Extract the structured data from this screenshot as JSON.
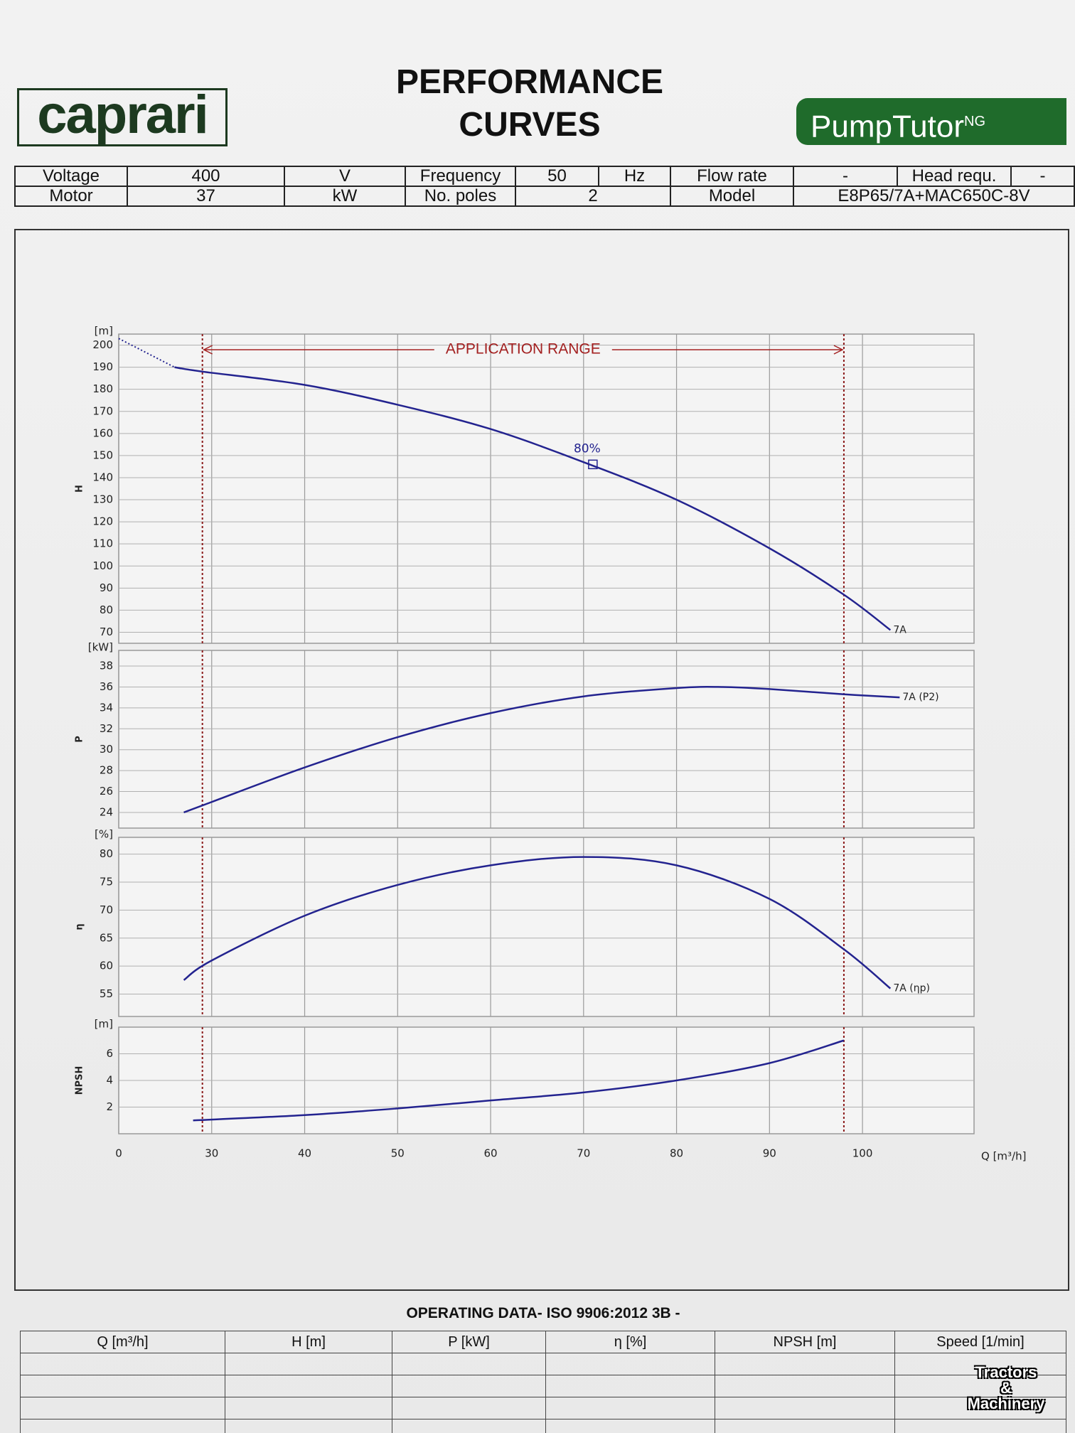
{
  "header": {
    "logo": "caprari",
    "title_line1": "PERFORMANCE",
    "title_line2": "CURVES",
    "brand": "PumpTutor",
    "brand_sup": "NG"
  },
  "info": {
    "rows": [
      [
        "Voltage",
        "400",
        "V",
        "Frequency",
        "50",
        "Hz",
        "Flow rate",
        "-",
        "Head requ.",
        "-"
      ],
      [
        "Motor",
        "37",
        "kW",
        "No. poles",
        "2",
        "Model",
        "E8P65/7A+MAC650C-8V"
      ]
    ]
  },
  "chart_data": [
    {
      "type": "line",
      "ylabel": "H",
      "yunit": "[m]",
      "ylim": [
        65,
        205
      ],
      "yticks": [
        70,
        80,
        90,
        100,
        110,
        120,
        130,
        140,
        150,
        160,
        170,
        180,
        190,
        200
      ],
      "series": [
        {
          "name": "7A",
          "color": "#23238f",
          "x": [
            26,
            29,
            40,
            50,
            60,
            70,
            80,
            90,
            98,
            103
          ],
          "values": [
            190,
            188,
            182,
            173,
            162,
            147,
            130,
            108,
            87,
            71
          ]
        }
      ],
      "dotted": {
        "x": [
          20,
          26
        ],
        "values": [
          203,
          190
        ]
      },
      "application_range": {
        "label": "APPLICATION RANGE",
        "x": [
          29,
          98
        ]
      },
      "markers": [
        {
          "label": "80%",
          "x": 71,
          "y": 146
        }
      ]
    },
    {
      "type": "line",
      "ylabel": "P",
      "yunit": "[kW]",
      "ylim": [
        22.5,
        39.5
      ],
      "yticks": [
        24,
        26,
        28,
        30,
        32,
        34,
        36,
        38
      ],
      "series": [
        {
          "name": "7A (P2)",
          "color": "#23238f",
          "x": [
            27,
            30,
            40,
            50,
            60,
            70,
            80,
            85,
            90,
            98,
            104
          ],
          "values": [
            24,
            25,
            28.3,
            31.2,
            33.5,
            35.1,
            35.9,
            36,
            35.8,
            35.3,
            35
          ]
        }
      ]
    },
    {
      "type": "line",
      "ylabel": "η",
      "yunit": "[%]",
      "ylim": [
        51,
        83
      ],
      "yticks": [
        55,
        60,
        65,
        70,
        75,
        80
      ],
      "series": [
        {
          "name": "7A (ηp)",
          "color": "#23238f",
          "x": [
            27,
            30,
            40,
            50,
            60,
            70,
            80,
            90,
            98,
            103
          ],
          "values": [
            57.5,
            61,
            69,
            74.5,
            78,
            79.5,
            78,
            72,
            63,
            56
          ]
        }
      ]
    },
    {
      "type": "line",
      "ylabel": "NPSH",
      "yunit": "[m]",
      "ylim": [
        0,
        8
      ],
      "yticks": [
        2,
        4,
        6
      ],
      "series": [
        {
          "color": "#23238f",
          "x": [
            28,
            40,
            50,
            60,
            70,
            80,
            90,
            98
          ],
          "values": [
            1,
            1.4,
            1.9,
            2.5,
            3.1,
            4,
            5.3,
            7
          ]
        }
      ],
      "xlabel": "Q [m³/h]",
      "xlim": [
        20,
        112
      ],
      "xticks": [
        {
          "value": 20,
          "label": "0"
        },
        30,
        40,
        50,
        60,
        70,
        80,
        90,
        100
      ]
    }
  ],
  "operating": {
    "title": "OPERATING DATA- ISO 9906:2012 3B -",
    "columns": [
      "Q [m³/h]",
      "H [m]",
      "P [kW]",
      "η [%]",
      "NPSH [m]",
      "Speed [1/min]"
    ]
  },
  "watermark": [
    "Tractors",
    "&",
    "Machinery"
  ]
}
